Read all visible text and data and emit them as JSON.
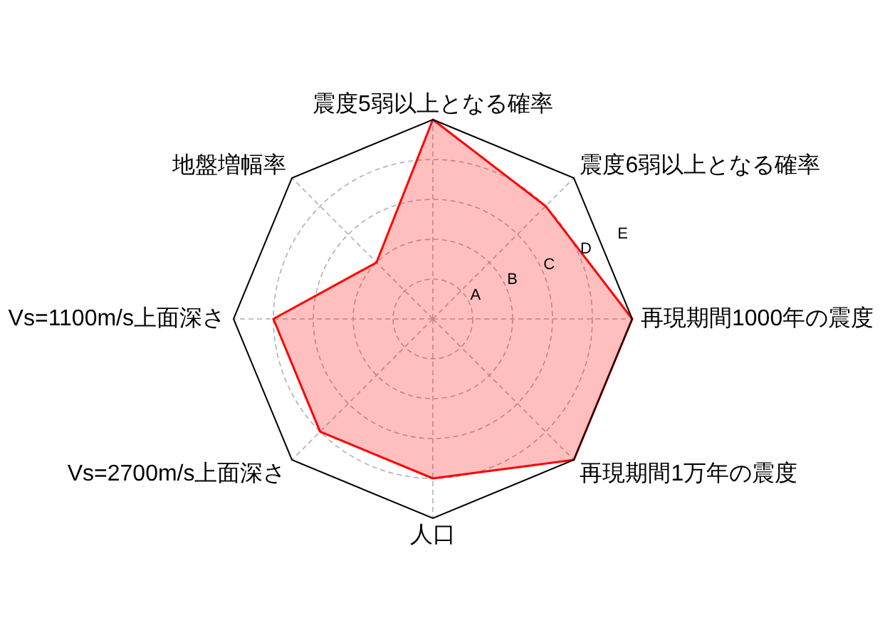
{
  "chart_data": {
    "type": "radar",
    "categories": [
      "震度5弱以上となる確率",
      "震度6弱以上となる確率",
      "再現期間1000年の震度",
      "再現期間1万年の震度",
      "人口",
      "Vs=2700m/s上面深さ",
      "Vs=1100m/s上面深さ",
      "地盤増幅率"
    ],
    "series": [
      {
        "color": "#ff0000",
        "values": [
          5,
          4,
          5,
          5,
          4,
          4,
          4,
          2
        ]
      }
    ],
    "ylim": [
      0,
      5
    ],
    "yticks": [
      {
        "value": 1,
        "label": "A"
      },
      {
        "value": 2,
        "label": "B"
      },
      {
        "value": 3,
        "label": "C"
      },
      {
        "value": 4,
        "label": "D"
      },
      {
        "value": 5,
        "label": "E"
      }
    ],
    "grid": true
  }
}
